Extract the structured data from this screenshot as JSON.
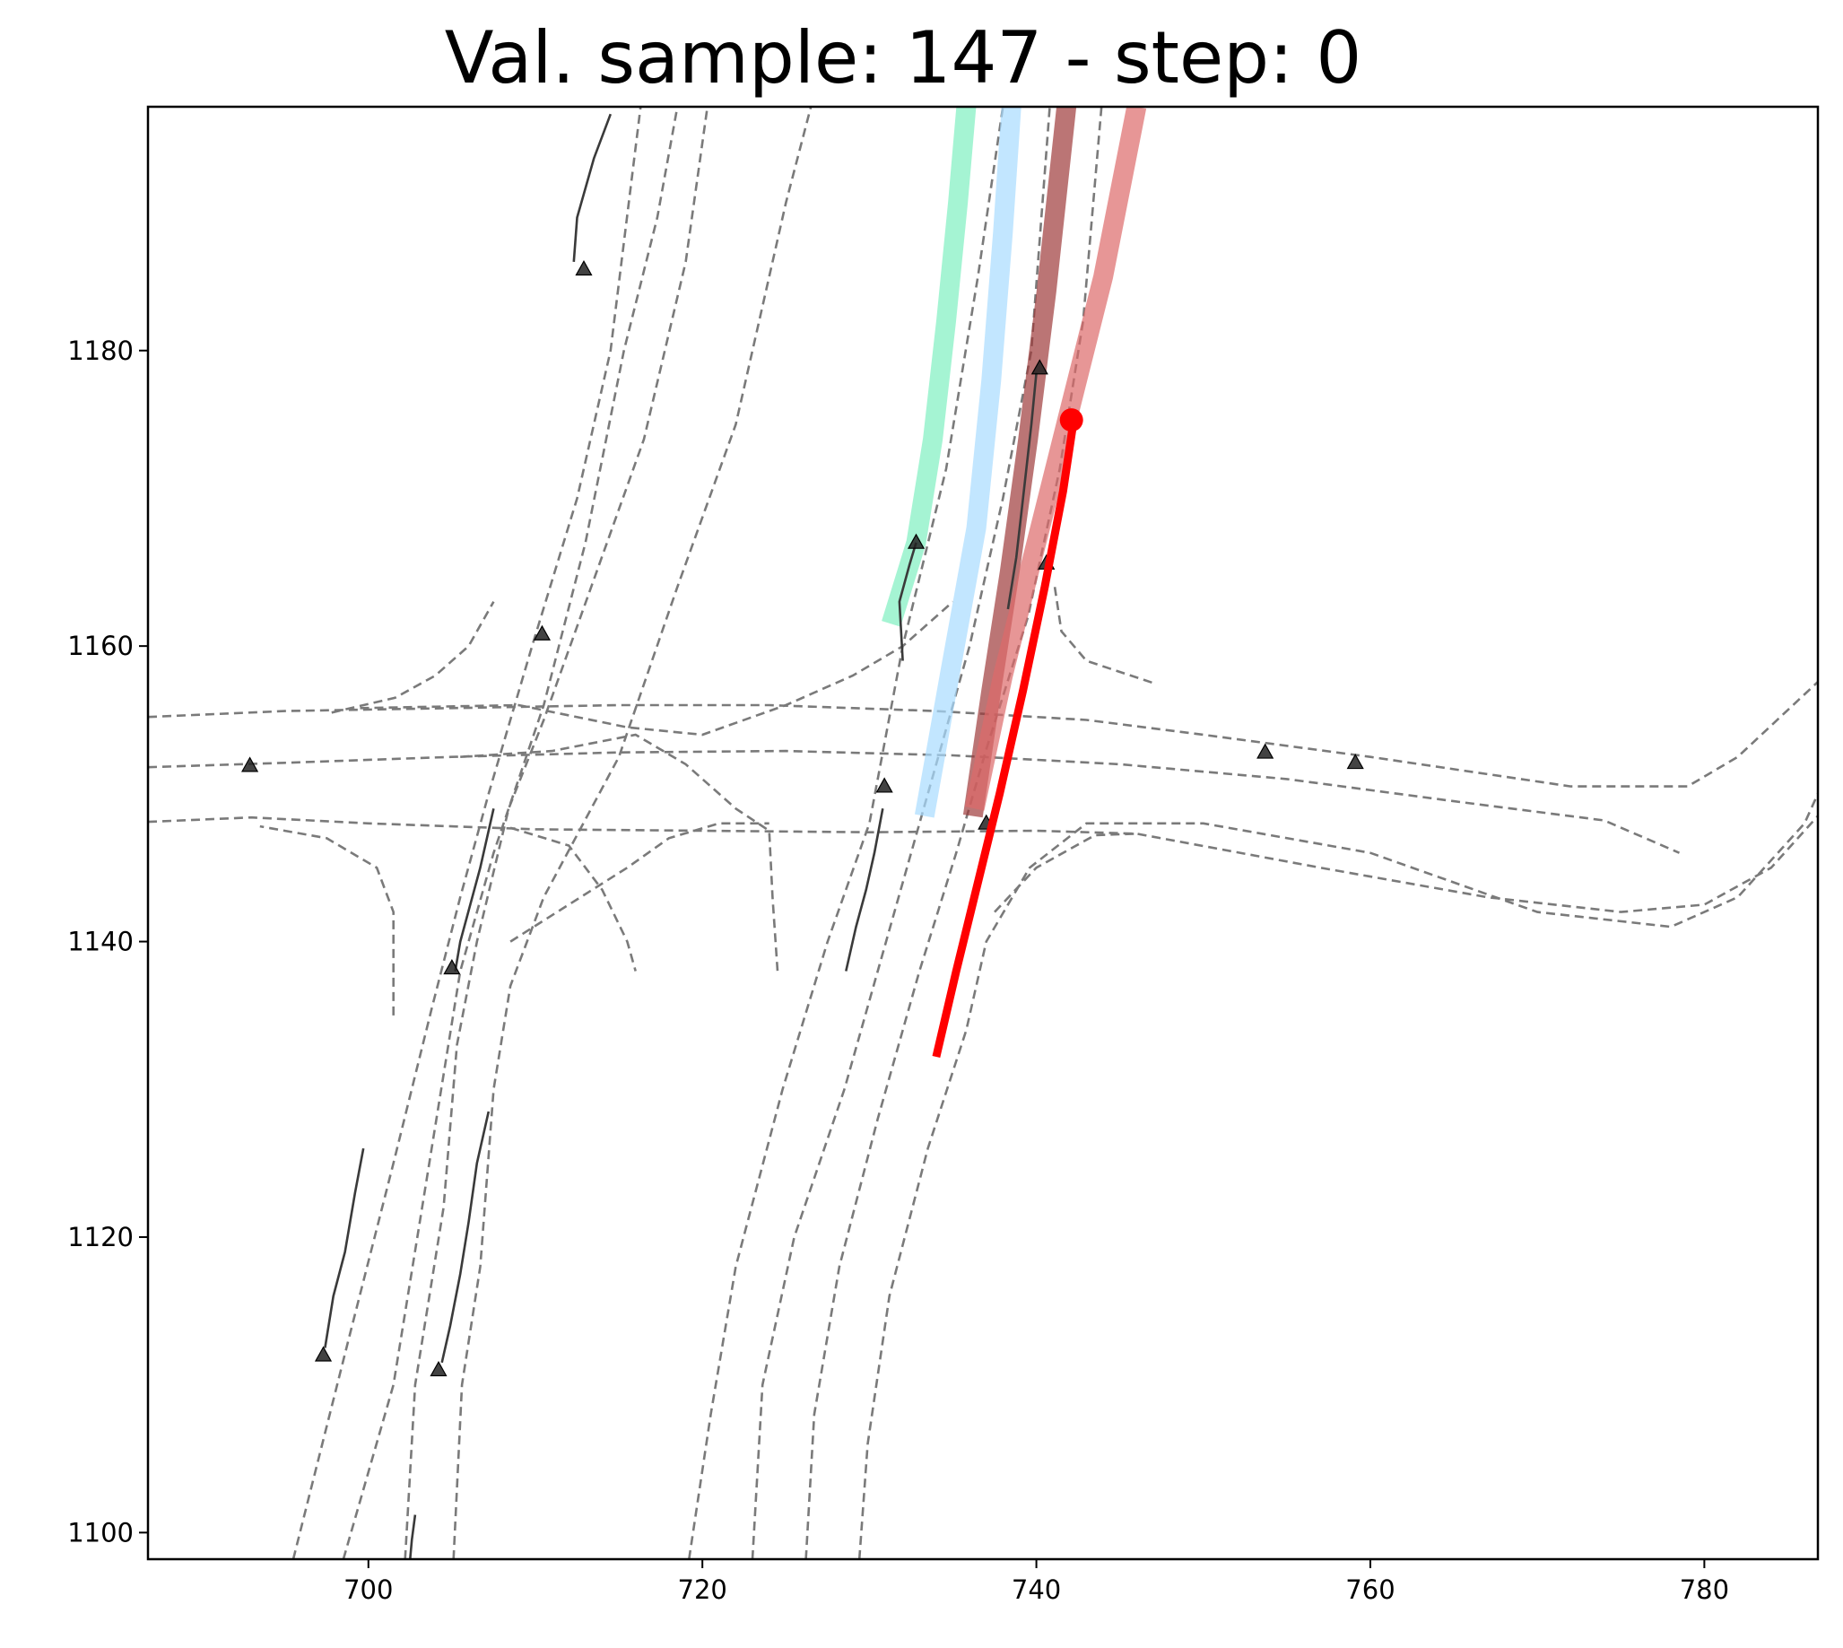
{
  "chart_data": {
    "type": "line",
    "title": "Val. sample: 147 - step: 0",
    "xlabel": "",
    "ylabel": "",
    "xlim": [
      686.8,
      786.8
    ],
    "ylim": [
      1098.2,
      1196.5
    ],
    "xticks": [
      700,
      720,
      740,
      760,
      780
    ],
    "yticks": [
      1100,
      1120,
      1140,
      1160,
      1180
    ],
    "grid": false,
    "colors": {
      "lane": "#7a7a7a",
      "agent_track": "#3a3a3a",
      "ego": "#ff0000",
      "pred_green": "#7ff0c0",
      "pred_blue": "#a8dcff",
      "pred_dark_red": "#9e3b3b",
      "pred_red": "#dd6a6a"
    },
    "lanes": [
      [
        [
          695.5,
          1098.2
        ],
        [
          698.8,
          1113
        ],
        [
          701.5,
          1125
        ],
        [
          703.8,
          1135.5
        ],
        [
          705.5,
          1143
        ],
        [
          707.2,
          1150
        ],
        [
          709.8,
          1160
        ],
        [
          712.5,
          1170
        ],
        [
          714.5,
          1180
        ],
        [
          716.3,
          1196.5
        ]
      ],
      [
        [
          698.5,
          1098.2
        ],
        [
          701.5,
          1110
        ],
        [
          703.5,
          1124
        ],
        [
          705.5,
          1138
        ],
        [
          707.5,
          1146
        ],
        [
          710.5,
          1156
        ],
        [
          713,
          1167
        ],
        [
          715.3,
          1180
        ],
        [
          717.3,
          1189
        ],
        [
          718.5,
          1196.5
        ]
      ],
      [
        [
          702.2,
          1098.2
        ],
        [
          702.8,
          1110
        ],
        [
          704.5,
          1122
        ],
        [
          705.3,
          1133
        ],
        [
          706.5,
          1140
        ],
        [
          708.4,
          1149
        ],
        [
          710.5,
          1155
        ],
        [
          716.5,
          1174
        ],
        [
          719,
          1186
        ],
        [
          720.3,
          1196.5
        ]
      ],
      [
        [
          705.1,
          1098.2
        ],
        [
          705.6,
          1110
        ],
        [
          706.7,
          1118
        ],
        [
          707.5,
          1130
        ],
        [
          708.5,
          1137
        ],
        [
          710.5,
          1143
        ],
        [
          715,
          1152.5
        ],
        [
          718.5,
          1164
        ],
        [
          722,
          1175
        ],
        [
          725,
          1190
        ],
        [
          726.5,
          1196.5
        ]
      ],
      [
        [
          719.2,
          1098.2
        ],
        [
          720.5,
          1108
        ],
        [
          722,
          1118
        ],
        [
          724.8,
          1130
        ],
        [
          727.5,
          1140
        ],
        [
          730,
          1148
        ],
        [
          732,
          1160
        ],
        [
          734.6,
          1172
        ],
        [
          736.5,
          1185
        ],
        [
          738,
          1196.5
        ]
      ],
      [
        [
          723,
          1098.2
        ],
        [
          723.6,
          1110
        ],
        [
          725.5,
          1120
        ],
        [
          728.5,
          1130
        ],
        [
          731.5,
          1142
        ],
        [
          734,
          1152
        ],
        [
          736,
          1160
        ],
        [
          738,
          1170
        ],
        [
          739.7,
          1180
        ],
        [
          740.8,
          1196.5
        ]
      ],
      [
        [
          726.2,
          1098.2
        ],
        [
          726.7,
          1108
        ],
        [
          728.2,
          1118
        ],
        [
          730.5,
          1128
        ],
        [
          733,
          1138
        ],
        [
          735.2,
          1146
        ],
        [
          737,
          1153
        ],
        [
          739.5,
          1162
        ],
        [
          741.4,
          1172
        ],
        [
          742.8,
          1182
        ],
        [
          743.9,
          1196.5
        ]
      ],
      [
        [
          729.4,
          1098.2
        ],
        [
          729.9,
          1106
        ],
        [
          731.2,
          1116
        ],
        [
          733.5,
          1126
        ],
        [
          735.8,
          1134
        ],
        [
          737,
          1140
        ],
        [
          739.6,
          1145
        ],
        [
          743,
          1148
        ],
        [
          750,
          1148
        ],
        [
          760,
          1146
        ],
        [
          770,
          1142
        ],
        [
          778,
          1141
        ],
        [
          782,
          1143
        ],
        [
          786,
          1148
        ],
        [
          787.2,
          1151
        ]
      ],
      [
        [
          686.8,
          1155.2
        ],
        [
          695,
          1155.6
        ],
        [
          705,
          1155.8
        ],
        [
          715,
          1156
        ],
        [
          724,
          1156
        ],
        [
          734,
          1155.6
        ],
        [
          743,
          1155
        ],
        [
          750,
          1154
        ],
        [
          760,
          1152.5
        ],
        [
          772,
          1150.5
        ],
        [
          779,
          1150.5
        ],
        [
          782,
          1152.5
        ],
        [
          787.2,
          1158
        ]
      ],
      [
        [
          686.8,
          1151.8
        ],
        [
          695,
          1152.1
        ],
        [
          705,
          1152.5
        ],
        [
          715,
          1152.8
        ],
        [
          725,
          1152.9
        ],
        [
          735,
          1152.6
        ],
        [
          745,
          1152
        ],
        [
          755,
          1151
        ],
        [
          765,
          1149.5
        ],
        [
          774,
          1148.2
        ],
        [
          778.5,
          1146
        ]
      ],
      [
        [
          686.8,
          1148.1
        ],
        [
          693,
          1148.4
        ],
        [
          700,
          1148
        ],
        [
          710,
          1147.6
        ],
        [
          720,
          1147.5
        ],
        [
          730,
          1147.4
        ],
        [
          740,
          1147.5
        ],
        [
          746,
          1147.3
        ],
        [
          757,
          1145
        ],
        [
          767,
          1143
        ],
        [
          775,
          1142
        ],
        [
          780,
          1142.5
        ],
        [
          784,
          1145
        ],
        [
          787.2,
          1149
        ]
      ],
      [
        [
          697.8,
          1155.5
        ],
        [
          701.6,
          1156.5
        ],
        [
          704,
          1158
        ],
        [
          706,
          1160
        ],
        [
          707.5,
          1163
        ]
      ],
      [
        [
          699.5,
          1155.8
        ],
        [
          709,
          1156
        ],
        [
          715.5,
          1154.5
        ],
        [
          720,
          1154
        ],
        [
          725,
          1156
        ],
        [
          729,
          1158
        ],
        [
          732,
          1160
        ],
        [
          735,
          1163
        ]
      ],
      [
        [
          705.5,
          1152.5
        ],
        [
          711,
          1152.9
        ],
        [
          716,
          1154
        ],
        [
          719,
          1152
        ],
        [
          722,
          1149
        ],
        [
          724,
          1147.5
        ],
        [
          724.2,
          1143
        ],
        [
          724.5,
          1138
        ]
      ],
      [
        [
          708.5,
          1147.7
        ],
        [
          712,
          1146.5
        ],
        [
          714,
          1143.5
        ],
        [
          715.5,
          1140
        ],
        [
          716,
          1138
        ]
      ],
      [
        [
          708.5,
          1140
        ],
        [
          712,
          1142.5
        ],
        [
          715.5,
          1145
        ],
        [
          718,
          1147
        ],
        [
          721,
          1148
        ],
        [
          724,
          1148
        ]
      ],
      [
        [
          701.5,
          1135
        ],
        [
          701.5,
          1142
        ],
        [
          700.5,
          1145
        ],
        [
          697.5,
          1147
        ],
        [
          693.5,
          1147.8
        ]
      ],
      [
        [
          737.5,
          1142
        ],
        [
          740,
          1145
        ],
        [
          743.5,
          1147.2
        ],
        [
          746,
          1147.3
        ]
      ],
      [
        [
          741.1,
          1164
        ],
        [
          741.5,
          1161
        ],
        [
          743,
          1159
        ],
        [
          747,
          1157.5
        ]
      ]
    ],
    "agent_tracks": [
      {
        "points": [
          [
            714.5,
            1196
          ],
          [
            713.5,
            1193
          ],
          [
            712.5,
            1189
          ],
          [
            712.3,
            1186
          ]
        ],
        "marker": [
          712.9,
          1185.5
        ]
      },
      {
        "points": [
          [
            707.5,
            1149
          ],
          [
            706.7,
            1145
          ],
          [
            705.5,
            1140
          ],
          [
            705.2,
            1138
          ]
        ],
        "marker": [
          705,
          1138.2
        ]
      },
      {
        "points": [
          [
            699.7,
            1126
          ],
          [
            699.2,
            1123
          ],
          [
            698.6,
            1119
          ],
          [
            697.9,
            1116
          ],
          [
            697.4,
            1112.5
          ]
        ],
        "marker": [
          697.3,
          1112
        ]
      },
      {
        "points": [
          [
            707.2,
            1128.5
          ],
          [
            706.5,
            1125
          ],
          [
            706,
            1121
          ],
          [
            705.5,
            1117.5
          ],
          [
            704.9,
            1114
          ],
          [
            704.4,
            1111.5
          ]
        ],
        "marker": [
          704.2,
          1111
        ]
      },
      {
        "points": [
          [
            702.8,
            1101.2
          ],
          [
            702.6,
            1099.5
          ],
          [
            702.5,
            1098.2
          ]
        ],
        "marker": null
      },
      {
        "points": [
          [
            728.6,
            1138
          ],
          [
            729.2,
            1141
          ],
          [
            729.8,
            1143.5
          ],
          [
            730.3,
            1146
          ],
          [
            730.8,
            1149
          ]
        ],
        "marker": [
          730.9,
          1150.5
        ]
      },
      {
        "points": [
          [
            732,
            1159
          ],
          [
            731.8,
            1163
          ],
          [
            732.4,
            1165.5
          ],
          [
            732.8,
            1167
          ]
        ],
        "marker": [
          732.8,
          1167
        ]
      },
      {
        "points": [
          [
            738.3,
            1162.5
          ],
          [
            738.8,
            1166
          ],
          [
            739.2,
            1170
          ],
          [
            739.7,
            1175
          ],
          [
            740,
            1178.5
          ]
        ],
        "marker": [
          740.2,
          1178.8
        ]
      },
      {
        "points": [],
        "marker": [
          710.4,
          1160.8
        ]
      },
      {
        "points": [],
        "marker": [
          692.9,
          1151.9
        ]
      },
      {
        "points": [],
        "marker": [
          753.7,
          1152.8
        ]
      },
      {
        "points": [],
        "marker": [
          759.1,
          1152.1
        ]
      },
      {
        "points": [],
        "marker": [
          740.6,
          1165.6
        ]
      },
      {
        "points": [],
        "marker": [
          737,
          1148
        ]
      }
    ],
    "predictions": [
      {
        "color": "pred_green",
        "points": [
          [
            731.3,
            1161.5
          ],
          [
            732.8,
            1167
          ],
          [
            733.8,
            1174
          ],
          [
            734.6,
            1182
          ],
          [
            735.3,
            1190
          ],
          [
            735.8,
            1196.5
          ]
        ]
      },
      {
        "color": "pred_blue",
        "points": [
          [
            733.3,
            1148.5
          ],
          [
            734.8,
            1158
          ],
          [
            736.4,
            1168
          ],
          [
            737.3,
            1178
          ],
          [
            738,
            1188
          ],
          [
            738.5,
            1196.5
          ]
        ]
      },
      {
        "color": "pred_dark_red",
        "points": [
          [
            736.2,
            1148.5
          ],
          [
            737.3,
            1157
          ],
          [
            738.4,
            1165
          ],
          [
            739.5,
            1174
          ],
          [
            740.6,
            1184
          ],
          [
            741.8,
            1196.5
          ]
        ]
      },
      {
        "color": "pred_red",
        "points": [
          [
            736.3,
            1149
          ],
          [
            738,
            1158
          ],
          [
            740,
            1167
          ],
          [
            742,
            1176
          ],
          [
            744,
            1185
          ],
          [
            746,
            1196.5
          ]
        ]
      }
    ],
    "ego": {
      "points": [
        [
          734,
          1132.2
        ],
        [
          735.2,
          1138
        ],
        [
          736.5,
          1144
        ],
        [
          737.8,
          1150
        ],
        [
          739.2,
          1157
        ],
        [
          740.5,
          1164
        ],
        [
          741.6,
          1170.5
        ],
        [
          742.2,
          1175
        ]
      ],
      "end_marker": [
        742.1,
        1175.3
      ]
    }
  }
}
